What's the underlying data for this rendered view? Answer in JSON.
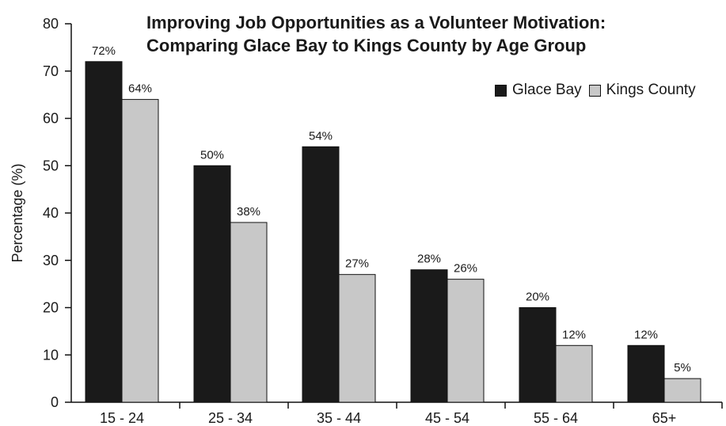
{
  "chart_data": {
    "type": "bar",
    "title_lines": [
      "Improving Job Opportunities as a Volunteer Motivation:",
      "Comparing Glace Bay to Kings County by Age Group"
    ],
    "xlabel": "",
    "ylabel": "Percentage (%)",
    "ylim": [
      0,
      80
    ],
    "yticks": [
      0,
      10,
      20,
      30,
      40,
      50,
      60,
      70,
      80
    ],
    "categories": [
      "15 - 24",
      "25 - 34",
      "35 - 44",
      "45 - 54",
      "55 - 64",
      "65+"
    ],
    "series": [
      {
        "name": "Glace Bay",
        "color": "#1a1a1a",
        "values": [
          72,
          50,
          54,
          28,
          20,
          12
        ],
        "labels": [
          "72%",
          "50%",
          "54%",
          "28%",
          "20%",
          "12%"
        ]
      },
      {
        "name": "Kings County",
        "color": "#c8c8c8",
        "values": [
          64,
          38,
          27,
          26,
          12,
          5
        ],
        "labels": [
          "64%",
          "38%",
          "27%",
          "26%",
          "12%",
          "5%"
        ]
      }
    ],
    "legend_position": "top-right",
    "grid": false
  }
}
